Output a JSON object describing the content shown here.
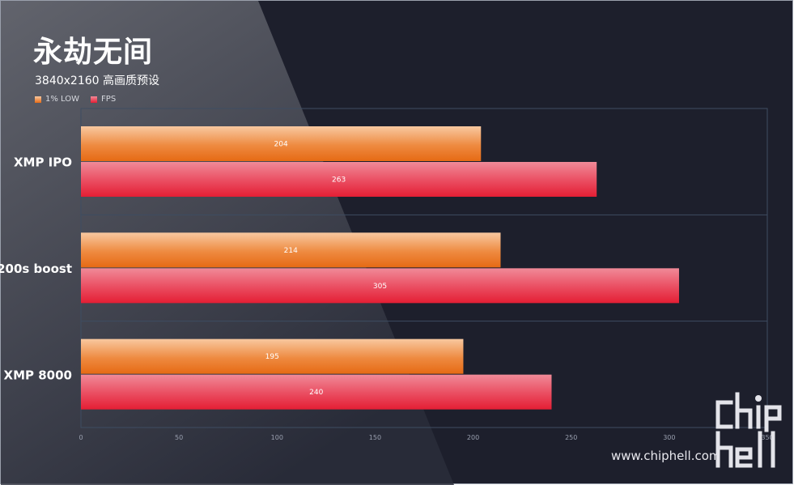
{
  "title": "永劫无间",
  "subtitle": "3840x2160 高画质预设",
  "watermark": {
    "url": "www.chiphell.com",
    "logo_text": "chip hell"
  },
  "colors": {
    "low_top": "#f8c8a0",
    "low_bottom": "#e66a14",
    "fps_top": "#f08a98",
    "fps_bottom": "#e41e34",
    "grid": "#3e4d62"
  },
  "chart_data": {
    "type": "bar",
    "orientation": "horizontal",
    "categories": [
      "XMP IPO",
      "200s boost",
      "XMP 8000"
    ],
    "series": [
      {
        "name": "1% LOW",
        "values": [
          204,
          214,
          195
        ]
      },
      {
        "name": "FPS",
        "values": [
          263,
          305,
          240
        ]
      }
    ],
    "xlim": [
      0,
      350
    ],
    "x_ticks": [
      "0",
      "50",
      "100",
      "150",
      "200",
      "250",
      "300",
      "350"
    ],
    "legend": "top-left",
    "grid": true
  }
}
